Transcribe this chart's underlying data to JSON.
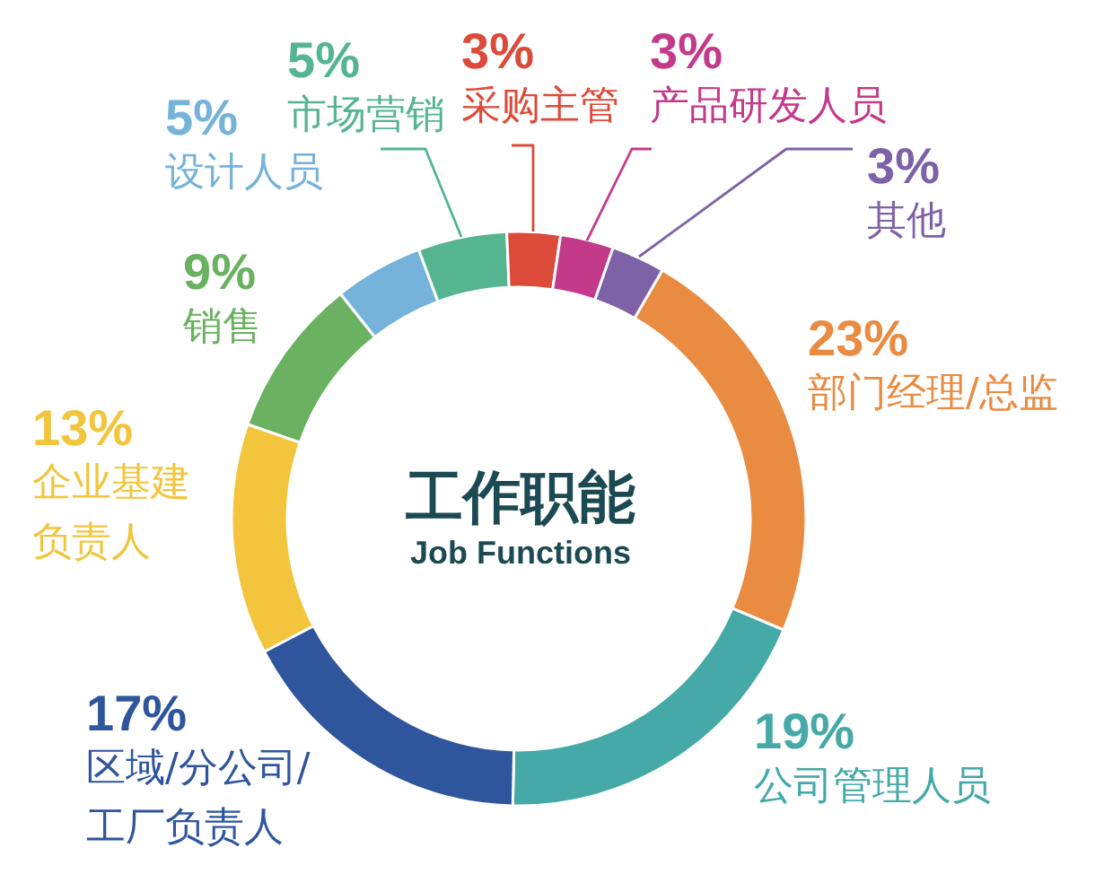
{
  "chart_data": {
    "type": "donut",
    "title": "工作职能",
    "subtitle": "Job Functions",
    "categories": [
      "部门经理/总监",
      "公司管理人员",
      "区域/分公司/工厂负责人",
      "企业基建负责人",
      "销售",
      "设计人员",
      "市场营销",
      "采购主管",
      "产品研发人员",
      "其他"
    ],
    "values": [
      23,
      19,
      17,
      13,
      9,
      5,
      5,
      3,
      3,
      3
    ],
    "value_labels": [
      "23%",
      "19%",
      "17%",
      "13%",
      "9%",
      "5%",
      "5%",
      "3%",
      "3%",
      "3%"
    ],
    "colors": [
      "#e98b40",
      "#45a9a8",
      "#2f569c",
      "#f2c53d",
      "#6ab261",
      "#76b3da",
      "#55b591",
      "#dc4b3a",
      "#c43a8a",
      "#7e62a8"
    ]
  }
}
